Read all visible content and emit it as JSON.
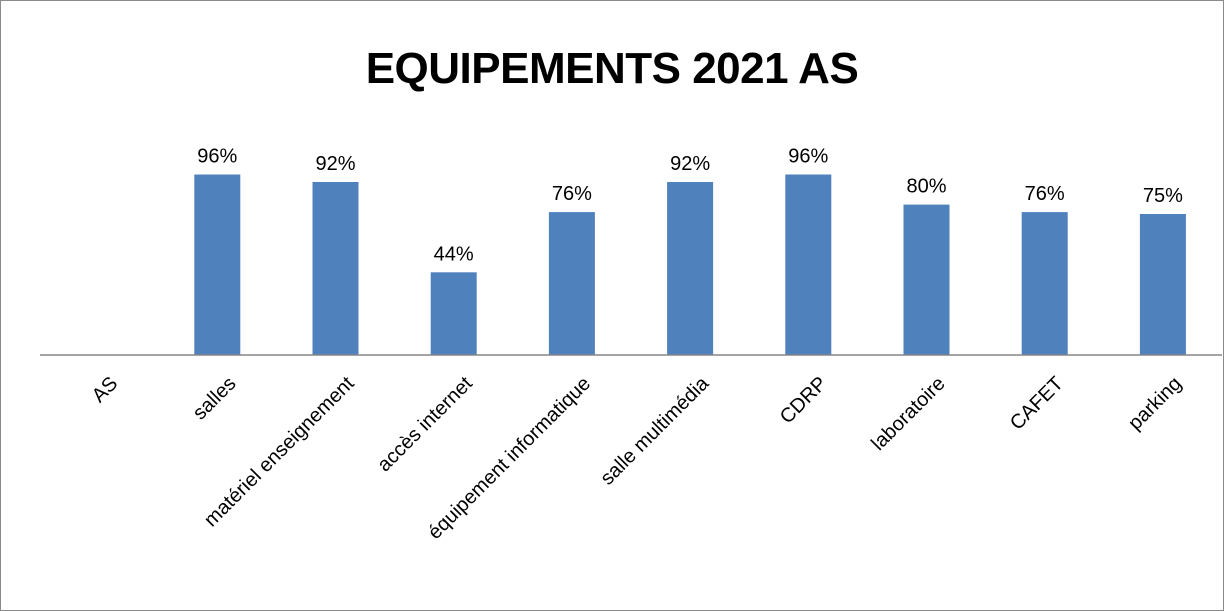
{
  "chart_data": {
    "type": "bar",
    "title": "EQUIPEMENTS 2021 AS",
    "categories": [
      "AS",
      "salles",
      "matériel enseignement",
      "accès internet",
      "équipement informatique",
      "salle multimédia",
      "CDRP",
      "laboratoire",
      "CAFET",
      "parking"
    ],
    "values": [
      null,
      96,
      92,
      44,
      76,
      92,
      96,
      80,
      76,
      75
    ],
    "value_labels": [
      "",
      "96%",
      "92%",
      "44%",
      "76%",
      "92%",
      "96%",
      "80%",
      "76%",
      "75%"
    ],
    "ylim": [
      0,
      100
    ],
    "y_unit": "%",
    "grid": false,
    "legend": "none",
    "bar_color": "#4F81BD",
    "axis_color": "#868686"
  }
}
